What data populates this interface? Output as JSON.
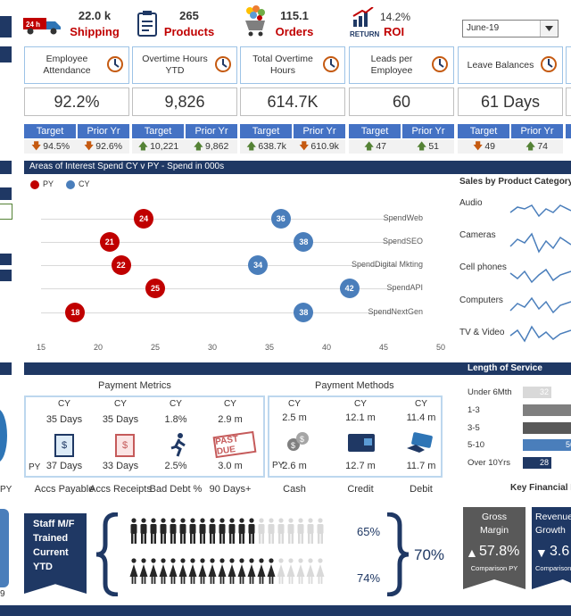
{
  "top_stats": [
    {
      "value": "22.0 k",
      "label": "Shipping",
      "icon": "truck-24h-icon"
    },
    {
      "value": "265",
      "label": "Products",
      "icon": "clipboard-icon"
    },
    {
      "value": "115.1",
      "label": "Orders",
      "icon": "shopping-cart-icon"
    },
    {
      "value": "14.2%",
      "label": "ROI",
      "sub": "RETURN",
      "icon": "return-chart-icon"
    }
  ],
  "period_select": {
    "value": "June-19"
  },
  "kpis": [
    {
      "title": "Employee Attendance",
      "value": "92.2%",
      "target_label": "Target",
      "prior_label": "Prior Yr",
      "target": "94.5%",
      "prior": "92.6%",
      "target_dir": "down",
      "prior_dir": "down",
      "icon": "employee-icon"
    },
    {
      "title": "Overtime Hours YTD",
      "value": "9,826",
      "target_label": "Target",
      "prior_label": "Prior Yr",
      "target": "10,221",
      "prior": "9,862",
      "target_dir": "up",
      "prior_dir": "up",
      "icon": "clock-icon"
    },
    {
      "title": "Total Overtime Hours",
      "value": "614.7K",
      "target_label": "Target",
      "prior_label": "Prior Yr",
      "target": "638.7k",
      "prior": "610.9k",
      "target_dir": "up",
      "prior_dir": "down",
      "icon": "money-bag-icon"
    },
    {
      "title": "Leads per Employee",
      "value": "60",
      "target_label": "Target",
      "prior_label": "Prior Yr",
      "target": "47",
      "prior": "51",
      "target_dir": "up",
      "prior_dir": "up",
      "icon": "magnet-icon"
    },
    {
      "title": "Leave Balances",
      "value": "61 Days",
      "target_label": "Target",
      "prior_label": "Prior Yr",
      "target": "49",
      "prior": "74",
      "target_dir": "down",
      "prior_dir": "up",
      "icon": "beach-icon"
    }
  ],
  "bubble_chart": {
    "title": "Areas of Interest Spend CY v PY - Spend in 000s",
    "legend": [
      "PY",
      "CY"
    ]
  },
  "chart_data": [
    {
      "type": "scatter",
      "title": "Areas of Interest Spend CY v PY - Spend in 000s",
      "categories": [
        "SpendWeb",
        "SpendSEO",
        "SpendDigital Mkting",
        "SpendAPI",
        "SpendNextGen"
      ],
      "series": [
        {
          "name": "PY",
          "x": [
            24,
            21,
            22,
            25,
            18
          ]
        },
        {
          "name": "CY",
          "x": [
            36,
            38,
            34,
            42,
            38
          ]
        }
      ],
      "xlim": [
        15,
        50
      ],
      "xticks": [
        15,
        20,
        25,
        30,
        35,
        40,
        45,
        50
      ],
      "colors": {
        "PY": "#c00000",
        "CY": "#4a7ebb"
      }
    },
    {
      "type": "bar",
      "title": "Length of Service",
      "categories": [
        "Under 6Mth",
        "1-3",
        "3-5",
        "5-10",
        "Over 10Yrs"
      ],
      "values": [
        32,
        null,
        null,
        56,
        28
      ]
    }
  ],
  "sales_by_product": {
    "title": "Sales by Product Category",
    "items": [
      "Audio",
      "Cameras",
      "Cell phones",
      "Computers",
      "TV & Video"
    ]
  },
  "payment_metrics": {
    "title": "Payment Metrics",
    "cy_label": "CY",
    "py_label": "PY",
    "items": [
      {
        "cy": "35 Days",
        "py": "37 Days",
        "label": "Accs Payable",
        "icon": "invoice-icon"
      },
      {
        "cy": "35 Days",
        "py": "33 Days",
        "label": "Accs Receipts",
        "icon": "receipt-icon"
      },
      {
        "cy": "1.8%",
        "py": "2.5%",
        "label": "Bad Debt %",
        "icon": "runner-icon"
      },
      {
        "cy": "2.9 m",
        "py": "3.0 m",
        "label": "90 Days+",
        "icon": "past-due-stamp-icon",
        "stamp": "PAST DUE"
      }
    ]
  },
  "payment_methods": {
    "title": "Payment Methods",
    "items": [
      {
        "cy": "2.5 m",
        "py": "2.6 m",
        "label": "Cash",
        "icon": "coins-icon"
      },
      {
        "cy": "12.1 m",
        "py": "12.7 m",
        "label": "Credit",
        "icon": "credit-card-icon"
      },
      {
        "cy": "11.4 m",
        "py": "11.7 m",
        "label": "Debit",
        "icon": "debit-card-icon"
      }
    ]
  },
  "length_of_service": {
    "title": "Length of Service"
  },
  "staff_panel": {
    "label": "Staff M/F Trained Current YTD",
    "male_pct": "65%",
    "female_pct": "74%",
    "total_pct": "70%"
  },
  "key_financial": {
    "title": "Key Financial M",
    "cards": [
      {
        "title": "Gross Margin",
        "value": "57.8%",
        "dir": "up",
        "sub": "Comparison PY"
      },
      {
        "title": "Revenue Growth",
        "value": "3.6",
        "dir": "down",
        "sub": "Comparison"
      }
    ]
  },
  "left_edge": {
    "py_label": "PY",
    "year_label": "9"
  },
  "colors": {
    "navy": "#1f3864",
    "accent": "#4472c4",
    "red": "#c00000",
    "up": "#548235",
    "down": "#c55a11"
  }
}
